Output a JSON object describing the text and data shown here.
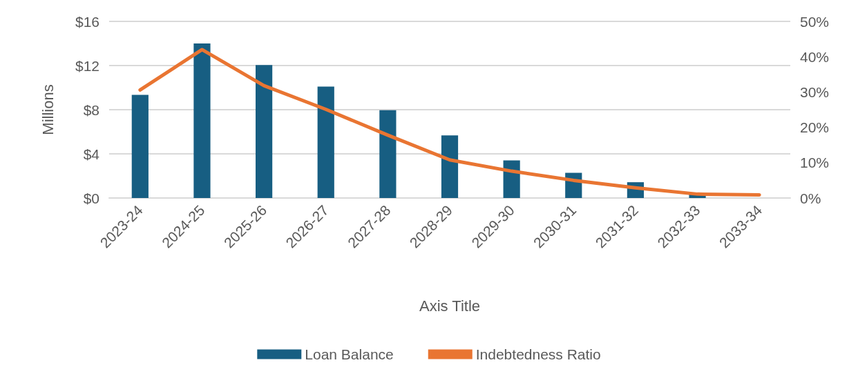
{
  "chart_data": {
    "type": "bar",
    "xlabel": "Axis Title",
    "ylabel": "Millions",
    "categories": [
      "2023-24",
      "2024-25",
      "2025-26",
      "2026-27",
      "2027-28",
      "2028-29",
      "2029-30",
      "2030-31",
      "2031-32",
      "2032-33",
      "2033-34"
    ],
    "series": [
      {
        "name": "Loan Balance",
        "color": "#175e82",
        "values": [
          9.35,
          14.0,
          12.05,
          10.1,
          7.95,
          5.67,
          3.41,
          2.28,
          1.43,
          0.4,
          null
        ]
      },
      {
        "name": "Indebtedness Ratio",
        "type": "line",
        "axis": "y2",
        "color": "#e97532",
        "values": [
          30.6,
          42.0,
          31.8,
          25.1,
          17.8,
          10.8,
          7.6,
          5.0,
          2.9,
          1.1,
          0.9
        ]
      }
    ],
    "ylim": [
      0,
      16
    ],
    "yticks": [
      {
        "value": 0,
        "label": "$0"
      },
      {
        "value": 4,
        "label": "$4"
      },
      {
        "value": 8,
        "label": "$8"
      },
      {
        "value": 12,
        "label": "$12"
      },
      {
        "value": 16,
        "label": "$16"
      }
    ],
    "y2lim": [
      0,
      50
    ],
    "y2ticks": [
      {
        "value": 0,
        "label": "0%"
      },
      {
        "value": 10,
        "label": "10%"
      },
      {
        "value": 20,
        "label": "20%"
      },
      {
        "value": 30,
        "label": "30%"
      },
      {
        "value": 40,
        "label": "40%"
      },
      {
        "value": 50,
        "label": "50%"
      }
    ],
    "grid": "y",
    "legend": "bottom",
    "marker": "none",
    "line_style": "solid"
  }
}
